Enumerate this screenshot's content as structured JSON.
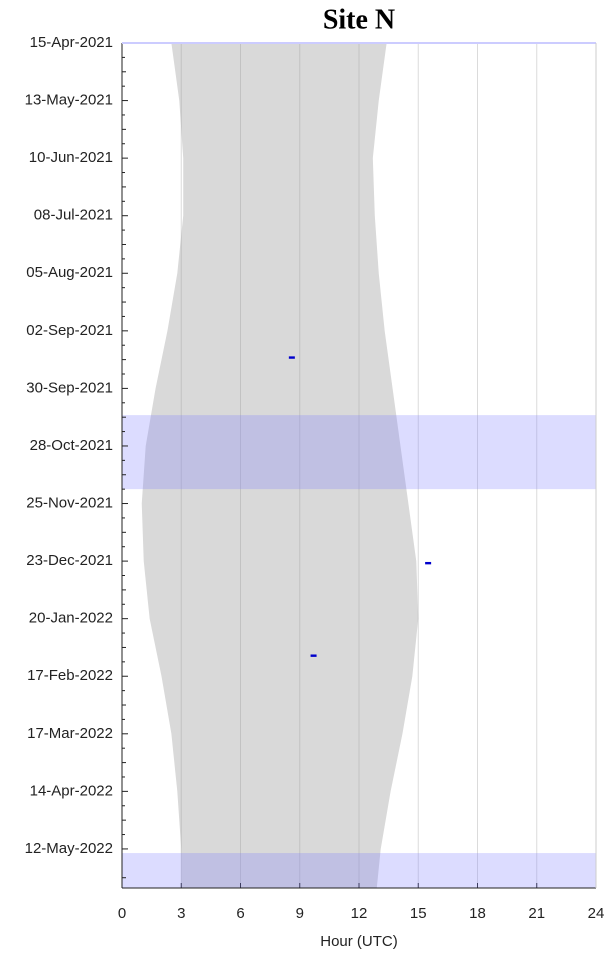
{
  "chart_data": {
    "type": "night-detections",
    "title": "Site N",
    "x_label": "Hour (UTC)",
    "xlim": [
      0,
      24
    ],
    "xticks": [
      0,
      3,
      6,
      9,
      12,
      15,
      18,
      21,
      24
    ],
    "ylim": [
      "2021-04-15",
      "2022-05-31"
    ],
    "y_reversed": true,
    "yticks": [
      {
        "value": "2021-04-15",
        "label": "15-Apr-2021"
      },
      {
        "value": "2021-05-13",
        "label": "13-May-2021"
      },
      {
        "value": "2021-06-10",
        "label": "10-Jun-2021"
      },
      {
        "value": "2021-07-08",
        "label": "08-Jul-2021"
      },
      {
        "value": "2021-08-05",
        "label": "05-Aug-2021"
      },
      {
        "value": "2021-09-02",
        "label": "02-Sep-2021"
      },
      {
        "value": "2021-09-30",
        "label": "30-Sep-2021"
      },
      {
        "value": "2021-10-28",
        "label": "28-Oct-2021"
      },
      {
        "value": "2021-11-25",
        "label": "25-Nov-2021"
      },
      {
        "value": "2021-12-23",
        "label": "23-Dec-2021"
      },
      {
        "value": "2022-01-20",
        "label": "20-Jan-2022"
      },
      {
        "value": "2022-02-17",
        "label": "17-Feb-2022"
      },
      {
        "value": "2022-03-17",
        "label": "17-Mar-2022"
      },
      {
        "value": "2022-04-14",
        "label": "14-Apr-2022"
      },
      {
        "value": "2022-05-12",
        "label": "12-May-2022"
      }
    ],
    "grid": true,
    "night": {
      "color": "#d9d9d9",
      "dates": [
        "2021-04-15",
        "2021-05-13",
        "2021-06-10",
        "2021-07-08",
        "2021-08-05",
        "2021-09-02",
        "2021-09-30",
        "2021-10-28",
        "2021-11-25",
        "2021-12-23",
        "2022-01-20",
        "2022-02-17",
        "2022-03-17",
        "2022-04-14",
        "2022-05-12",
        "2022-05-31"
      ],
      "start": [
        2.5,
        2.9,
        3.1,
        3.1,
        2.8,
        2.3,
        1.7,
        1.2,
        1.0,
        1.1,
        1.4,
        2.0,
        2.5,
        2.8,
        3.0,
        3.0
      ],
      "end": [
        13.4,
        13.0,
        12.7,
        12.8,
        13.0,
        13.3,
        13.7,
        14.1,
        14.5,
        14.9,
        15.0,
        14.7,
        14.2,
        13.6,
        13.1,
        12.9
      ]
    },
    "shaded_periods": {
      "color": "#8080ff",
      "start": [
        "2021-10-13",
        "2022-05-14"
      ],
      "end": [
        "2021-11-18",
        "2022-05-31"
      ]
    },
    "series": [
      {
        "color": "#0000cc",
        "x": [
          8.6,
          15.5,
          9.7
        ],
        "y": [
          "2021-09-15",
          "2021-12-24",
          "2022-02-07"
        ]
      }
    ]
  }
}
